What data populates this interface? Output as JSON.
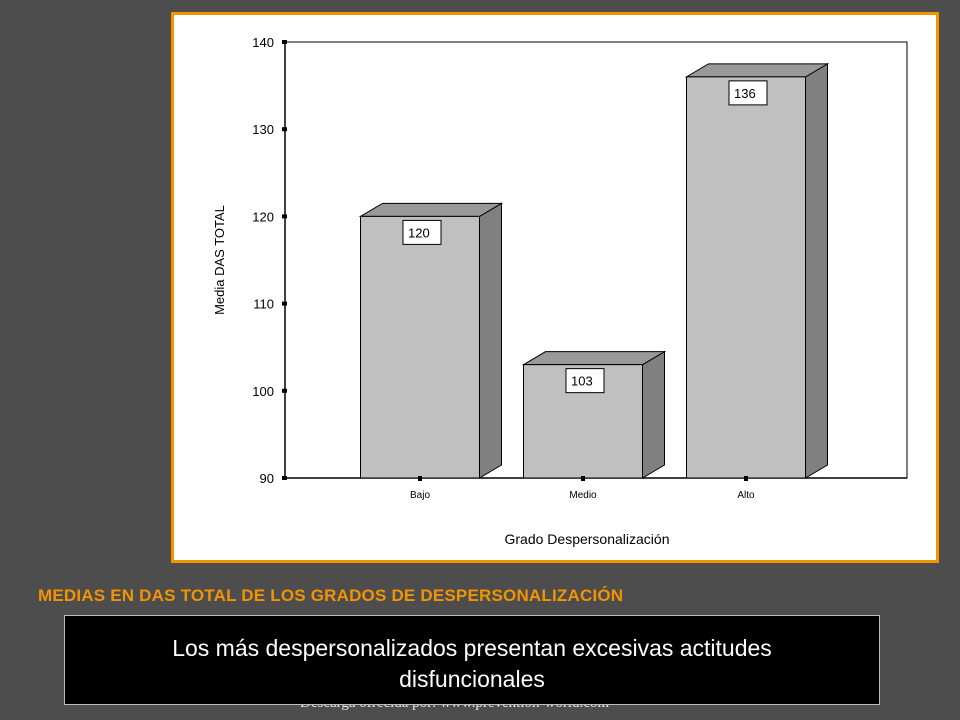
{
  "colors": {
    "background": "#4d4d4d",
    "frame_border": "#f29400",
    "caption": "#f29400",
    "bar_front": "#c0c0c0",
    "bar_top": "#999999",
    "bar_side": "#808080"
  },
  "chart_data": {
    "type": "bar",
    "style": "3d",
    "categories": [
      "Bajo",
      "Medio",
      "Alto"
    ],
    "values": [
      120,
      103,
      136
    ],
    "data_labels": [
      "120",
      "103",
      "136"
    ],
    "xlabel": "Grado Despersonalización",
    "ylabel": "Media DAS TOTAL",
    "ylim": [
      90,
      140
    ],
    "yticks": [
      90,
      100,
      110,
      120,
      130,
      140
    ],
    "grid": false,
    "legend": "none"
  },
  "caption": "MEDIAS EN DAS TOTAL DE LOS GRADOS DE DESPERSONALIZACIÓN",
  "footer_credit": "Descarga ofrecida por: www.prevention-world.com",
  "message": {
    "line1": "Los más despersonalizados presentan excesivas actitudes",
    "line2": "disfuncionales"
  }
}
